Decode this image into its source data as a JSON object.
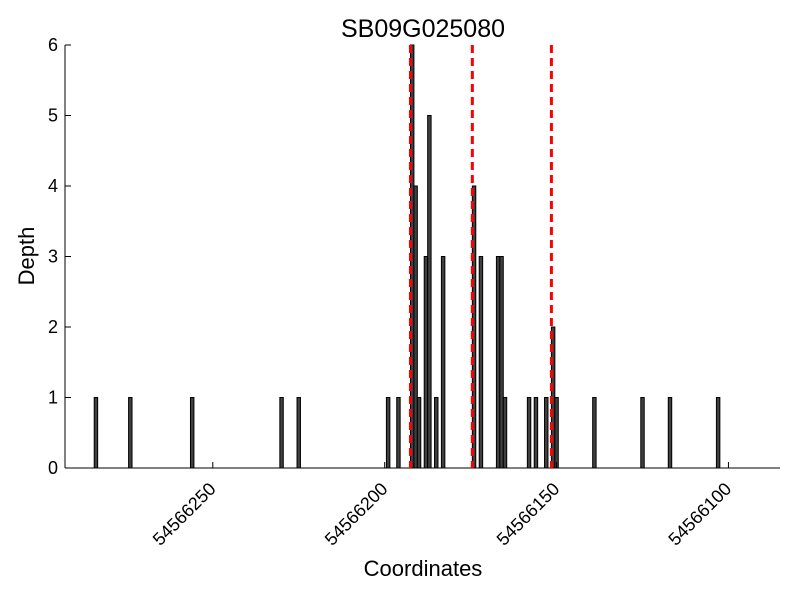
{
  "chart_data": {
    "type": "bar",
    "title": "SB09G025080",
    "xlabel": "Coordinates",
    "ylabel": "Depth",
    "x_reversed": true,
    "xlim": [
      54566293,
      54566085
    ],
    "ylim": [
      0,
      6
    ],
    "xticks": [
      54566250,
      54566200,
      54566150,
      54566100
    ],
    "xtick_labels": [
      "54566250",
      "54566200",
      "54566150",
      "54566100"
    ],
    "yticks": [
      0,
      1,
      2,
      3,
      4,
      5,
      6
    ],
    "ytick_labels": [
      "0",
      "1",
      "2",
      "3",
      "4",
      "5",
      "6"
    ],
    "grid": false,
    "bar_color": "#404040",
    "bar_edge_color": "#000000",
    "vline_color": "#ff0000",
    "vlines": [
      54566192.5,
      54566174.5,
      54566151.5
    ],
    "bars": [
      {
        "x": 54566284,
        "value": 1
      },
      {
        "x": 54566274,
        "value": 1
      },
      {
        "x": 54566256,
        "value": 1
      },
      {
        "x": 54566230,
        "value": 1
      },
      {
        "x": 54566225,
        "value": 1
      },
      {
        "x": 54566199,
        "value": 1
      },
      {
        "x": 54566196,
        "value": 1
      },
      {
        "x": 54566192,
        "value": 6
      },
      {
        "x": 54566191,
        "value": 4
      },
      {
        "x": 54566190,
        "value": 1
      },
      {
        "x": 54566188,
        "value": 3
      },
      {
        "x": 54566187,
        "value": 5
      },
      {
        "x": 54566185,
        "value": 1
      },
      {
        "x": 54566183,
        "value": 3
      },
      {
        "x": 54566174,
        "value": 4
      },
      {
        "x": 54566172,
        "value": 3
      },
      {
        "x": 54566167,
        "value": 3
      },
      {
        "x": 54566166,
        "value": 3
      },
      {
        "x": 54566165,
        "value": 1
      },
      {
        "x": 54566158,
        "value": 1
      },
      {
        "x": 54566156,
        "value": 1
      },
      {
        "x": 54566153,
        "value": 1
      },
      {
        "x": 54566151,
        "value": 2
      },
      {
        "x": 54566150,
        "value": 1
      },
      {
        "x": 54566139,
        "value": 1
      },
      {
        "x": 54566125,
        "value": 1
      },
      {
        "x": 54566117,
        "value": 1
      },
      {
        "x": 54566103,
        "value": 1
      }
    ]
  }
}
